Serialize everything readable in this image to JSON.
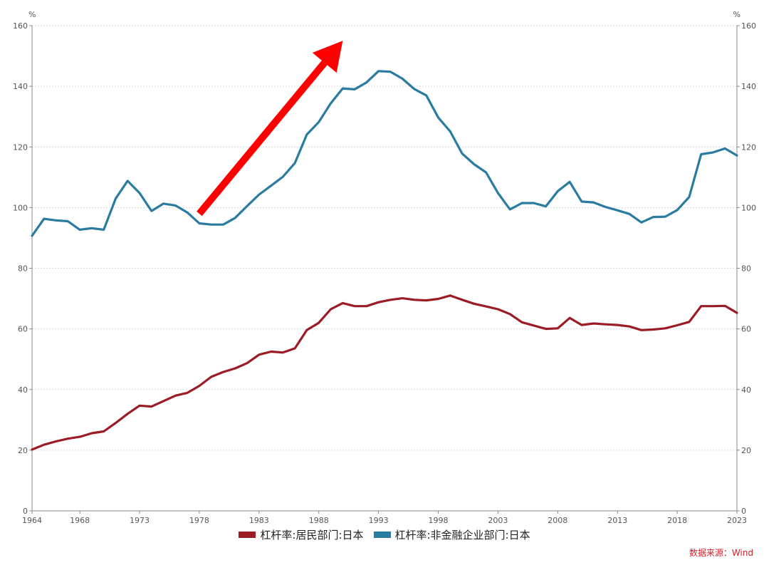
{
  "chart_data": {
    "type": "line",
    "x": [
      1964,
      1965,
      1966,
      1967,
      1968,
      1969,
      1970,
      1971,
      1972,
      1973,
      1974,
      1975,
      1976,
      1977,
      1978,
      1979,
      1980,
      1981,
      1982,
      1983,
      1984,
      1985,
      1986,
      1987,
      1988,
      1989,
      1990,
      1991,
      1992,
      1993,
      1994,
      1995,
      1996,
      1997,
      1998,
      1999,
      2000,
      2001,
      2002,
      2003,
      2004,
      2005,
      2006,
      2007,
      2008,
      2009,
      2010,
      2011,
      2012,
      2013,
      2014,
      2015,
      2016,
      2017,
      2018,
      2019,
      2020,
      2021,
      2022,
      2023
    ],
    "x_ticks": [
      "1964",
      "1968",
      "1973",
      "1978",
      "1983",
      "1988",
      "1993",
      "1998",
      "2003",
      "2008",
      "2013",
      "2018",
      "2023"
    ],
    "y_ticks": [
      "0",
      "20",
      "40",
      "60",
      "80",
      "100",
      "120",
      "140",
      "160"
    ],
    "ylim": [
      0,
      160
    ],
    "y_unit_left": "%",
    "y_unit_right": "%",
    "grid": true,
    "legend_position": "bottom",
    "series": [
      {
        "name": "杠杆率:居民部门:日本",
        "color": "#9b1c24",
        "values": [
          20.2,
          21.8,
          22.9,
          23.8,
          24.4,
          25.6,
          26.2,
          29.0,
          32.0,
          34.7,
          34.4,
          36.2,
          38.0,
          38.9,
          41.2,
          44.2,
          45.8,
          47.0,
          48.7,
          51.5,
          52.5,
          52.2,
          53.6,
          59.6,
          62.0,
          66.5,
          68.5,
          67.5,
          67.5,
          68.8,
          69.6,
          70.1,
          69.6,
          69.4,
          69.9,
          71.0,
          69.6,
          68.3,
          67.4,
          66.5,
          64.9,
          62.2,
          61.1,
          60.0,
          60.2,
          63.6,
          61.3,
          61.8,
          61.5,
          61.3,
          60.8,
          59.6,
          59.8,
          60.2,
          61.2,
          62.3,
          67.5,
          67.5,
          67.6,
          65.3
        ]
      },
      {
        "name": "杠杆率:非金融企业部门:日本",
        "color": "#2a7ba0",
        "values": [
          90.7,
          96.3,
          95.8,
          95.5,
          92.7,
          93.2,
          92.7,
          103.0,
          108.8,
          104.8,
          98.9,
          101.3,
          100.7,
          98.4,
          94.8,
          94.4,
          94.4,
          96.6,
          100.5,
          104.3,
          107.2,
          110.2,
          114.7,
          124.1,
          128.2,
          134.4,
          139.3,
          139.0,
          141.3,
          145.0,
          144.8,
          142.5,
          139.1,
          137.0,
          129.7,
          125.1,
          117.8,
          114.3,
          111.6,
          104.8,
          99.4,
          101.5,
          101.5,
          100.4,
          105.4,
          108.5,
          102.0,
          101.7,
          100.2,
          99.1,
          97.9,
          95.1,
          96.9,
          97.0,
          99.2,
          103.5,
          117.6,
          118.2,
          119.5,
          117.2
        ]
      }
    ],
    "annotations": [
      {
        "type": "arrow",
        "color": "#ff0000",
        "from": [
          1978,
          98
        ],
        "to": [
          1990,
          155
        ]
      }
    ]
  },
  "source_text": "数据来源：Wind"
}
